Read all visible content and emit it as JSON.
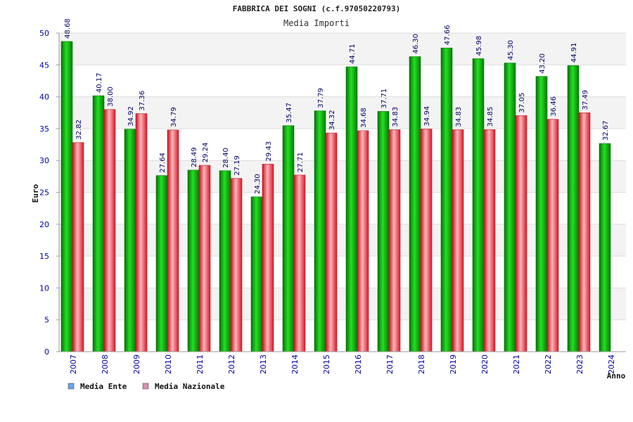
{
  "chart_data": {
    "type": "bar",
    "title": "FABBRICA DEI SOGNI (c.f.97050220793)",
    "subtitle": "Media Importi",
    "xlabel": "Anno",
    "ylabel": "Euro",
    "ylim": [
      0,
      50
    ],
    "yticks": [
      "0",
      "5",
      "10",
      "15",
      "20",
      "25",
      "30",
      "35",
      "40",
      "45",
      "50"
    ],
    "grid": true,
    "legend_position": "bottom-left",
    "categories": [
      "2007",
      "2008",
      "2009",
      "2010",
      "2011",
      "2012",
      "2013",
      "2014",
      "2015",
      "2016",
      "2017",
      "2018",
      "2019",
      "2020",
      "2021",
      "2022",
      "2023",
      "2024"
    ],
    "series": [
      {
        "name": "Media Ente",
        "legend_color": "#6aa6e8",
        "bar_color": "#1fbf1f",
        "values": [
          48.68,
          40.17,
          34.92,
          27.64,
          28.49,
          28.4,
          24.3,
          35.47,
          37.79,
          44.71,
          37.71,
          46.3,
          47.66,
          45.98,
          45.3,
          43.2,
          44.91,
          32.67
        ],
        "labels": [
          "48.68",
          "40.17",
          "34.92",
          "27.64",
          "28.49",
          "28.40",
          "24.30",
          "35.47",
          "37.79",
          "44.71",
          "37.71",
          "46.30",
          "47.66",
          "45.98",
          "45.30",
          "43.20",
          "44.91",
          "32.67"
        ]
      },
      {
        "name": "Media Nazionale",
        "legend_color": "#d98fb0",
        "bar_color": "#e8303a",
        "values": [
          32.82,
          38.0,
          37.36,
          34.79,
          29.24,
          27.19,
          29.43,
          27.71,
          34.32,
          34.68,
          34.83,
          34.94,
          34.83,
          34.85,
          37.05,
          36.46,
          37.49,
          null
        ],
        "labels": [
          "32.82",
          "38.00",
          "37.36",
          "34.79",
          "29.24",
          "27.19",
          "29.43",
          "27.71",
          "34.32",
          "34.68",
          "34.83",
          "34.94",
          "34.83",
          "34.85",
          "37.05",
          "36.46",
          "37.49",
          null
        ]
      }
    ]
  }
}
